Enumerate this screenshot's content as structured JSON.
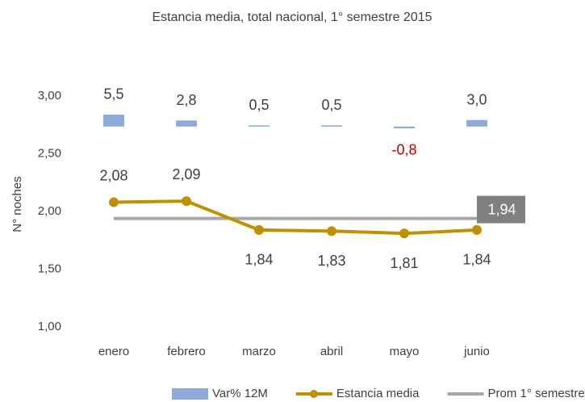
{
  "chart_data": {
    "type": "bar_line",
    "title": "Estancia media, total nacional, 1° semestre 2015",
    "y_axis_label": "N° noches",
    "categories": [
      "enero",
      "febrero",
      "marzo",
      "abril",
      "mayo",
      "junio"
    ],
    "ylim": [
      1.0,
      3.0
    ],
    "yticks": [
      {
        "value": 1.0,
        "label": "1,00"
      },
      {
        "value": 1.5,
        "label": "1,50"
      },
      {
        "value": 2.0,
        "label": "2,00"
      },
      {
        "value": 2.5,
        "label": "2,50"
      },
      {
        "value": 3.0,
        "label": "3,00"
      }
    ],
    "y2lim": [
      -92,
      14
    ],
    "grid": false,
    "legend": "bottom",
    "negative_label_color": "#c00000",
    "series": [
      {
        "name": "Var% 12M",
        "type": "bar",
        "axis": "y2",
        "color": "#8eaadb",
        "values": [
          5.5,
          2.8,
          0.5,
          0.5,
          -0.8,
          3.0
        ],
        "value_labels": [
          "5,5",
          "2,8",
          "0,5",
          "0,5",
          "-0,8",
          "3,0"
        ]
      },
      {
        "name": "Estancia media",
        "type": "line",
        "color": "#bf9000",
        "values": [
          2.08,
          2.09,
          1.84,
          1.83,
          1.81,
          1.84
        ],
        "value_labels": [
          "2,08",
          "2,09",
          "1,84",
          "1,83",
          "1,81",
          "1,84"
        ]
      },
      {
        "name": "Prom 1° semestre",
        "type": "line",
        "color": "#a6a6a6",
        "values": [
          1.94,
          1.94,
          1.94,
          1.94,
          1.94,
          1.94
        ],
        "value_labels": [
          null,
          null,
          null,
          null,
          null,
          "1,94"
        ]
      }
    ]
  }
}
